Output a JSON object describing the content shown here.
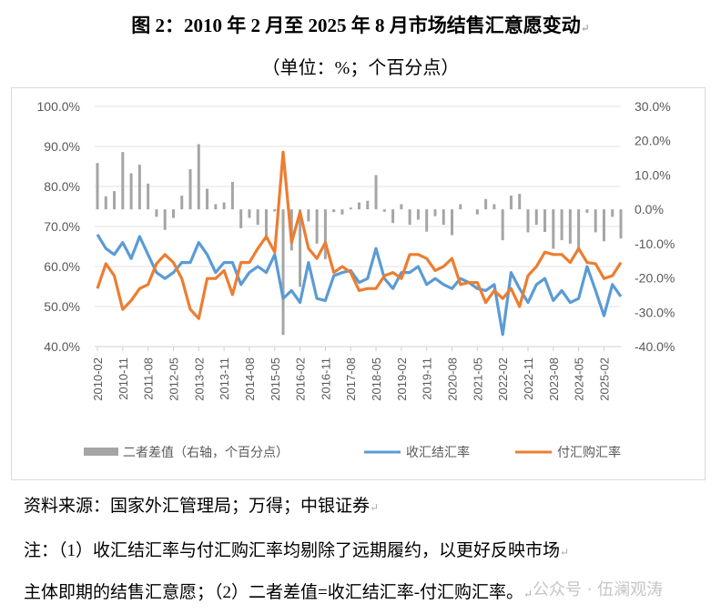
{
  "title": "图 2：2010 年 2 月至 2025 年 8 月市场结售汇意愿变动",
  "subtitle": "（单位：%；个百分点）",
  "source": "资料来源：国家外汇管理局；万得；中银证券",
  "note_line1": "注：（1）收汇结汇率与付汇购汇率均剔除了远期履约，以更好反映市场",
  "note_line2": "主体即期的结售汇意愿；（2）二者差值=收汇结汇率-付汇购汇率。",
  "watermark": "公众号 · 伍澜观涛",
  "chart_data": {
    "type": "bar+line",
    "title": "",
    "left_axis": {
      "ylim": [
        40,
        100
      ],
      "ticks": [
        "40.0%",
        "50.0%",
        "60.0%",
        "70.0%",
        "80.0%",
        "90.0%",
        "100.0%"
      ]
    },
    "right_axis": {
      "ylim": [
        -40,
        30
      ],
      "ticks": [
        "-40.0%",
        "-30.0%",
        "-20.0%",
        "-10.0%",
        "0.0%",
        "10.0%",
        "20.0%",
        "30.0%"
      ]
    },
    "x_ticks": [
      "2010-02",
      "2010-11",
      "2011-08",
      "2012-05",
      "2013-02",
      "2013-11",
      "2014-08",
      "2015-05",
      "2016-02",
      "2016-11",
      "2017-08",
      "2018-05",
      "2019-02",
      "2019-11",
      "2020-08",
      "2021-05",
      "2022-02",
      "2022-11",
      "2023-08",
      "2024-05",
      "2025-02"
    ],
    "x_start": "2010-02",
    "x_end": "2025-08",
    "sampling": "quarterly (approx.)",
    "legend_position": "bottom",
    "series": [
      {
        "name": "二者差值（右轴，个百分点）",
        "axis": "right",
        "type": "bar",
        "color": "#a5a5a5",
        "values": [
          13.5,
          3.8,
          5.3,
          16.7,
          10.5,
          13,
          7.5,
          -2.2,
          -6,
          -2.5,
          4,
          11.7,
          19,
          6,
          1.5,
          2,
          8,
          -5.5,
          -2.5,
          -4.5,
          -9,
          -0.6,
          -36.6,
          -12,
          -22.6,
          -3.5,
          -10,
          -14.5,
          -0.8,
          -1.5,
          0.5,
          2,
          2.5,
          10,
          -0.7,
          -4,
          1.5,
          -4.5,
          -3,
          -6.5,
          -2,
          -4.5,
          -7.5,
          1.5,
          0,
          -1.5,
          3,
          1.5,
          -9,
          4,
          4.5,
          -6.7,
          -4.5,
          -6.6,
          -11.5,
          -9,
          -10,
          -12.5,
          -1,
          -6.7,
          -9.3,
          -2.2,
          -8.5
        ]
      },
      {
        "name": "收汇结汇率",
        "axis": "left",
        "type": "line",
        "color": "#5b9bd5",
        "values": [
          68,
          64.5,
          63,
          66,
          62,
          67.5,
          63,
          58.5,
          57,
          58.5,
          61,
          61,
          66,
          63,
          58.5,
          61,
          61,
          55.5,
          58.5,
          60,
          58.5,
          63,
          52,
          54,
          51,
          61,
          52,
          51.5,
          57.7,
          58.5,
          59,
          56,
          57,
          64.5,
          57,
          54.5,
          58.5,
          58.5,
          60,
          55.5,
          57,
          55.5,
          54.5,
          57,
          56,
          54.5,
          54,
          55.5,
          43,
          58.5,
          54.5,
          51,
          55.5,
          57,
          51.5,
          54,
          51,
          52,
          60,
          54,
          47.7,
          55.5,
          52.5
        ]
      },
      {
        "name": "付汇购汇率",
        "axis": "left",
        "type": "line",
        "color": "#ed7d31",
        "values": [
          54.5,
          60.7,
          57.7,
          49.3,
          51.5,
          54.5,
          55.5,
          60.7,
          63,
          61,
          57,
          49.3,
          47,
          57,
          57,
          59,
          53,
          61,
          61,
          64.5,
          67.5,
          63.6,
          88.6,
          66,
          73.6,
          64.5,
          62,
          66,
          58.5,
          60,
          58.5,
          54,
          54.5,
          54.5,
          57.7,
          58.5,
          57,
          63,
          63,
          62,
          59,
          60,
          62,
          55.5,
          56,
          56,
          51,
          54,
          52,
          54.5,
          50,
          57.7,
          60,
          63.6,
          63,
          63,
          61,
          64.5,
          61,
          60.7,
          57,
          57.7,
          61
        ]
      }
    ]
  }
}
